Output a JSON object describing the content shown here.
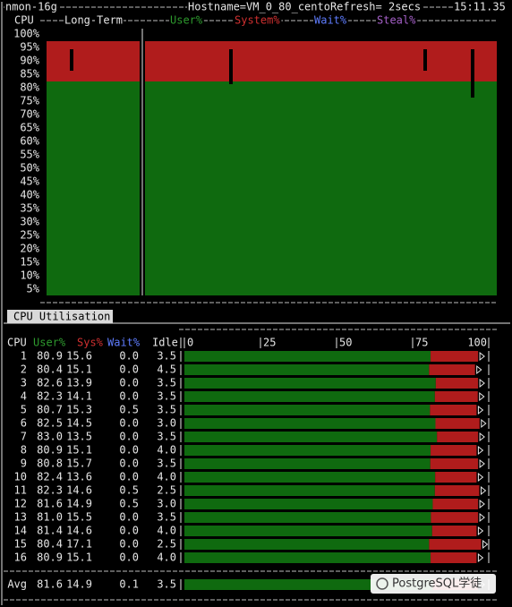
{
  "header": {
    "program": "nmon-16g",
    "hostname": "Hostname=VM_0_80_cento",
    "refresh": "Refresh= 2secs",
    "time": "15:11.35"
  },
  "long_term": {
    "cpu_label": "CPU",
    "title": "Long-Term",
    "legend": [
      "User%",
      "System%",
      "Wait%",
      "Steal%"
    ],
    "y_labels": [
      "100%",
      "95%",
      "90%",
      "85%",
      "80%",
      "75%",
      "70%",
      "65%",
      "60%",
      "55%",
      "50%",
      "45%",
      "40%",
      "35%",
      "30%",
      "25%",
      "20%",
      "15%",
      "10%",
      "5%"
    ]
  },
  "panel_title": "CPU Utilisation",
  "table": {
    "columns": [
      "CPU",
      "User%",
      "Sys%",
      "Wait%",
      "Idle"
    ],
    "scale": [
      "0",
      "25",
      "50",
      "75",
      "100"
    ],
    "rows": [
      [
        "1",
        "80.9",
        "15.6",
        "0.0",
        "3.5"
      ],
      [
        "2",
        "80.4",
        "15.1",
        "0.0",
        "4.5"
      ],
      [
        "3",
        "82.6",
        "13.9",
        "0.0",
        "3.5"
      ],
      [
        "4",
        "82.3",
        "14.1",
        "0.0",
        "3.5"
      ],
      [
        "5",
        "80.7",
        "15.3",
        "0.5",
        "3.5"
      ],
      [
        "6",
        "82.5",
        "14.5",
        "0.0",
        "3.0"
      ],
      [
        "7",
        "83.0",
        "13.5",
        "0.0",
        "3.5"
      ],
      [
        "8",
        "80.9",
        "15.1",
        "0.0",
        "4.0"
      ],
      [
        "9",
        "80.8",
        "15.7",
        "0.0",
        "3.5"
      ],
      [
        "10",
        "82.4",
        "13.6",
        "0.0",
        "4.0"
      ],
      [
        "11",
        "82.3",
        "14.6",
        "0.5",
        "2.5"
      ],
      [
        "12",
        "81.6",
        "14.9",
        "0.5",
        "3.0"
      ],
      [
        "13",
        "81.0",
        "15.5",
        "0.0",
        "3.5"
      ],
      [
        "14",
        "81.4",
        "14.6",
        "0.0",
        "4.0"
      ],
      [
        "15",
        "80.4",
        "17.1",
        "0.0",
        "2.5"
      ],
      [
        "16",
        "80.9",
        "15.1",
        "0.0",
        "4.0"
      ]
    ],
    "avg": [
      "Avg",
      "81.6",
      "14.9",
      "0.1",
      "3.5"
    ]
  },
  "watermark": "PostgreSQL学徒"
}
